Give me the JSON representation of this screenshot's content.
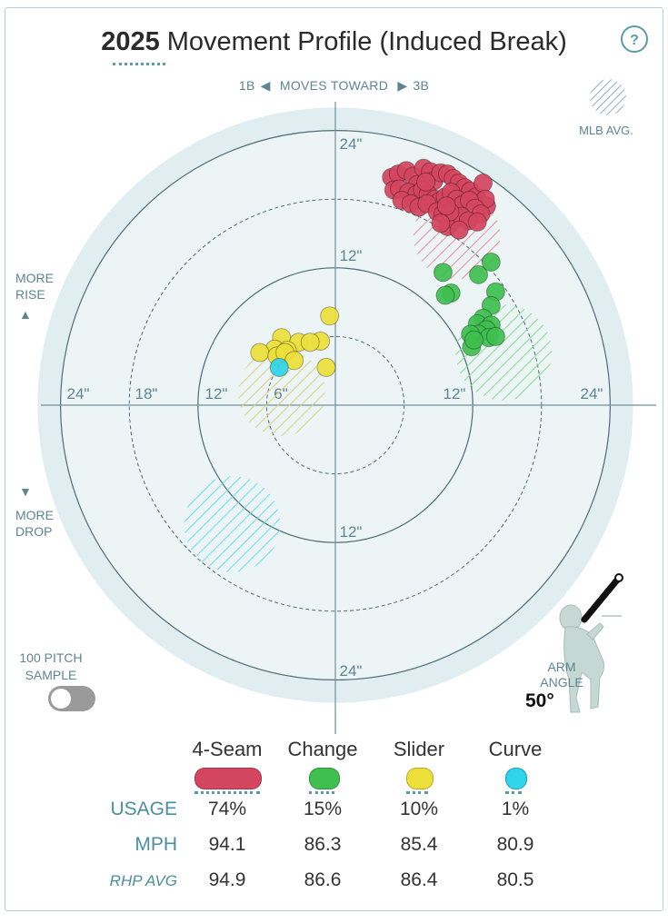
{
  "header": {
    "year": "2025",
    "title": "Movement Profile (Induced Break)",
    "help_label": "?"
  },
  "direction": {
    "left_label": "1B",
    "middle_label": "MOVES TOWARD",
    "right_label": "3B"
  },
  "mlb_avg_label": "MLB AVG.",
  "side_labels": {
    "rise_line1": "MORE",
    "rise_line2": "RISE",
    "drop_line1": "MORE",
    "drop_line2": "DROP",
    "rise_arrow": "▲",
    "drop_arrow": "▼"
  },
  "sample_toggle": {
    "line1": "100 PITCH",
    "line2": "SAMPLE",
    "on": false
  },
  "arm_angle": {
    "line1": "ARM",
    "line2": "ANGLE",
    "value": "50°",
    "degrees": 50
  },
  "colors": {
    "fourseam": "#d4455f",
    "change": "#3fbf4f",
    "slider": "#eee03a",
    "curve": "#2fd4ea",
    "ring_bg": "#e0eef2",
    "axis": "#5d8592"
  },
  "chart_data": {
    "type": "scatter",
    "title": "2025 Movement Profile (Induced Break)",
    "x_unit": "inches horizontal break",
    "y_unit": "inches induced vertical break",
    "xlim": [
      -24,
      24
    ],
    "ylim": [
      -24,
      24
    ],
    "rings": [
      6,
      12,
      18,
      24
    ],
    "ring_labels": {
      "top": [
        "24\"",
        "12\""
      ],
      "bottom": [
        "12\"",
        "24\""
      ],
      "left": [
        "24\"",
        "18\"",
        "12\"",
        "6\""
      ],
      "right": [
        "12\"",
        "24\""
      ]
    },
    "mlb_avg": [
      {
        "pitch": "4-Seam",
        "x": 10.6,
        "y": 14.8,
        "r": 3.8
      },
      {
        "pitch": "Change",
        "x": 14.7,
        "y": 4.6,
        "r": 4.2
      },
      {
        "pitch": "Slider",
        "x": -4.7,
        "y": 1.1,
        "r": 3.8
      },
      {
        "pitch": "Curve",
        "x": -9.0,
        "y": -10.4,
        "r": 4.2
      }
    ],
    "series": [
      {
        "name": "4-Seam",
        "points": [
          [
            4.9,
            19.9
          ],
          [
            5.5,
            20.2
          ],
          [
            6.2,
            20.5
          ],
          [
            6.8,
            20.0
          ],
          [
            7.2,
            19.3
          ],
          [
            7.7,
            20.7
          ],
          [
            8.3,
            20.4
          ],
          [
            8.6,
            19.6
          ],
          [
            9.2,
            20.3
          ],
          [
            9.8,
            20.2
          ],
          [
            10.3,
            19.8
          ],
          [
            10.8,
            19.4
          ],
          [
            11.3,
            19.0
          ],
          [
            11.8,
            18.7
          ],
          [
            12.3,
            18.2
          ],
          [
            12.9,
            19.4
          ],
          [
            13.2,
            17.4
          ],
          [
            13.1,
            18.0
          ],
          [
            5.1,
            18.8
          ],
          [
            5.6,
            18.9
          ],
          [
            6.4,
            18.6
          ],
          [
            7.1,
            18.4
          ],
          [
            7.6,
            18.8
          ],
          [
            8.1,
            18.4
          ],
          [
            8.7,
            18.0
          ],
          [
            9.1,
            17.8
          ],
          [
            9.6,
            18.2
          ],
          [
            10.1,
            18.6
          ],
          [
            10.6,
            18.0
          ],
          [
            11.1,
            17.5
          ],
          [
            11.7,
            17.9
          ],
          [
            12.2,
            17.2
          ],
          [
            12.7,
            16.7
          ],
          [
            5.8,
            17.9
          ],
          [
            6.6,
            17.6
          ],
          [
            7.3,
            17.3
          ],
          [
            8.0,
            17.6
          ],
          [
            8.9,
            16.9
          ],
          [
            9.4,
            16.7
          ],
          [
            9.8,
            15.6
          ],
          [
            10.4,
            16.2
          ],
          [
            11.0,
            16.5
          ],
          [
            11.6,
            16.1
          ],
          [
            12.4,
            16.0
          ],
          [
            10.0,
            16.9
          ],
          [
            9.2,
            15.9
          ],
          [
            10.8,
            15.3
          ],
          [
            9.7,
            17.4
          ],
          [
            7.9,
            19.5
          ]
        ]
      },
      {
        "name": "Change",
        "points": [
          [
            9.4,
            11.6
          ],
          [
            10.1,
            9.8
          ],
          [
            9.6,
            9.6
          ],
          [
            12.5,
            11.4
          ],
          [
            13.6,
            12.5
          ],
          [
            14.0,
            9.9
          ],
          [
            13.6,
            8.7
          ],
          [
            12.9,
            7.6
          ],
          [
            12.4,
            7.1
          ],
          [
            13.6,
            7.0
          ],
          [
            13.2,
            6.6
          ],
          [
            12.5,
            6.2
          ],
          [
            13.4,
            5.9
          ],
          [
            11.8,
            6.2
          ],
          [
            11.9,
            5.1
          ],
          [
            14.0,
            6.0
          ],
          [
            12.1,
            5.7
          ]
        ]
      },
      {
        "name": "Slider",
        "points": [
          [
            -0.5,
            7.8
          ],
          [
            -4.7,
            5.9
          ],
          [
            -3.2,
            5.5
          ],
          [
            -1.3,
            5.6
          ],
          [
            -5.3,
            4.9
          ],
          [
            -6.6,
            4.6
          ],
          [
            -2.2,
            5.5
          ],
          [
            -4.2,
            4.8
          ],
          [
            -5.1,
            4.3
          ],
          [
            -4.4,
            4.6
          ],
          [
            -3.6,
            3.9
          ],
          [
            -0.8,
            3.3
          ]
        ]
      },
      {
        "name": "Curve",
        "points": [
          [
            -4.9,
            3.3
          ]
        ]
      }
    ]
  },
  "legend": [
    {
      "key": "fourseam",
      "name": "4-Seam",
      "usage": "74%",
      "mph": "94.1",
      "rhp_avg": "94.9"
    },
    {
      "key": "change",
      "name": "Change",
      "usage": "15%",
      "mph": "86.3",
      "rhp_avg": "86.6"
    },
    {
      "key": "slider",
      "name": "Slider",
      "usage": "10%",
      "mph": "85.4",
      "rhp_avg": "86.4"
    },
    {
      "key": "curve",
      "name": "Curve",
      "usage": "1%",
      "mph": "80.9",
      "rhp_avg": "80.5"
    }
  ],
  "table_labels": {
    "usage": "USAGE",
    "mph": "MPH",
    "rhp_avg": "RHP AVG"
  }
}
